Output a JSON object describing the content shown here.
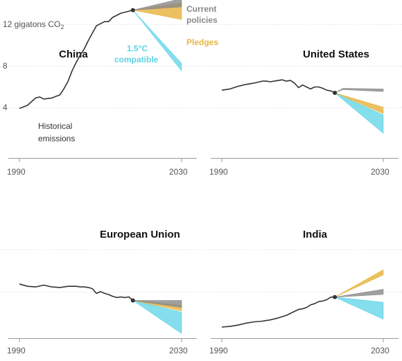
{
  "colors": {
    "historical": "#333333",
    "current_policies": "#888888",
    "pledges": "#e8b645",
    "compatible": "#5bd3e6",
    "grid": "#dddddd",
    "axis": "#999999"
  },
  "y_unit_label": "12 gigatons CO",
  "y_unit_subscript": "2",
  "y_ticks": [
    4,
    8
  ],
  "annotations": {
    "historical": [
      "Historical",
      "emissions"
    ],
    "current_policies": [
      "Current",
      "policies"
    ],
    "pledges": "Pledges",
    "compatible": [
      "1.5°C",
      "compatible"
    ]
  },
  "chart_data": [
    {
      "type": "line",
      "title": "China",
      "x_ticks": [
        "1990",
        "2030"
      ],
      "xlim": [
        1990,
        2030
      ],
      "ylim": [
        0,
        14
      ],
      "historical": {
        "x": [
          1990,
          1992,
          1994,
          1995,
          1996,
          1998,
          2000,
          2001,
          2002,
          2003,
          2004,
          2005,
          2006,
          2007,
          2008,
          2009,
          2010,
          2011,
          2012,
          2013,
          2014,
          2015,
          2016,
          2017,
          2018
        ],
        "y": [
          3.9,
          4.2,
          4.9,
          5.0,
          4.8,
          4.9,
          5.2,
          5.8,
          6.5,
          7.5,
          8.3,
          9.0,
          9.6,
          10.4,
          11.1,
          11.8,
          12.0,
          12.2,
          12.2,
          12.6,
          12.8,
          13.0,
          13.1,
          13.2,
          13.3
        ]
      },
      "current_policies": {
        "x": [
          2018,
          2030
        ],
        "low": [
          13.3,
          13.6
        ],
        "high": [
          13.3,
          14.4
        ]
      },
      "pledges": {
        "x": [
          2018,
          2030
        ],
        "low": [
          13.3,
          12.4
        ],
        "high": [
          13.3,
          14.0
        ]
      },
      "compatible": {
        "x": [
          2018,
          2030
        ],
        "low": [
          13.3,
          7.5
        ],
        "high": [
          13.3,
          8.2
        ]
      }
    },
    {
      "type": "line",
      "title": "United States",
      "x_ticks": [
        "1990",
        "2030"
      ],
      "xlim": [
        1990,
        2030
      ],
      "ylim": [
        0,
        8
      ],
      "historical": {
        "x": [
          1990,
          1992,
          1994,
          1996,
          1998,
          2000,
          2001,
          2002,
          2004,
          2005,
          2006,
          2007,
          2008,
          2009,
          2010,
          2011,
          2012,
          2013,
          2014,
          2015,
          2016,
          2017,
          2018
        ],
        "y": [
          5.2,
          5.3,
          5.5,
          5.65,
          5.75,
          5.9,
          5.9,
          5.85,
          5.95,
          6.0,
          5.9,
          5.95,
          5.75,
          5.4,
          5.6,
          5.45,
          5.3,
          5.45,
          5.45,
          5.35,
          5.2,
          5.15,
          5.0
        ]
      },
      "current_policies": {
        "x": [
          2018,
          2020,
          2030
        ],
        "low": [
          5.0,
          5.25,
          5.1
        ],
        "high": [
          5.0,
          5.35,
          5.3
        ]
      },
      "pledges": {
        "x": [
          2018,
          2030
        ],
        "low": [
          5.0,
          3.4
        ],
        "high": [
          5.0,
          3.9
        ]
      },
      "compatible": {
        "x": [
          2018,
          2030
        ],
        "low": [
          5.0,
          1.9
        ],
        "high": [
          5.0,
          3.3
        ]
      }
    },
    {
      "type": "line",
      "title": "European Union",
      "x_ticks": [
        "1990",
        "2030"
      ],
      "xlim": [
        1990,
        2030
      ],
      "ylim": [
        0,
        8
      ],
      "historical": {
        "x": [
          1990,
          1992,
          1994,
          1996,
          1998,
          2000,
          2002,
          2004,
          2005,
          2006,
          2007,
          2008,
          2009,
          2010,
          2011,
          2012,
          2013,
          2014,
          2015,
          2016,
          2017,
          2018
        ],
        "y": [
          4.6,
          4.4,
          4.35,
          4.5,
          4.35,
          4.3,
          4.4,
          4.4,
          4.35,
          4.35,
          4.3,
          4.2,
          3.8,
          3.95,
          3.8,
          3.7,
          3.55,
          3.45,
          3.5,
          3.45,
          3.5,
          3.2
        ]
      },
      "current_policies": {
        "x": [
          2018,
          2030
        ],
        "low": [
          3.2,
          2.6
        ],
        "high": [
          3.2,
          3.2
        ]
      },
      "pledges": {
        "x": [
          2018,
          2030
        ],
        "low": [
          3.2,
          2.3
        ],
        "high": [
          3.2,
          2.8
        ]
      },
      "compatible": {
        "x": [
          2018,
          2030
        ],
        "low": [
          3.2,
          0.4
        ],
        "high": [
          3.2,
          2.2
        ]
      }
    },
    {
      "type": "line",
      "title": "India",
      "x_ticks": [
        "1990",
        "2030"
      ],
      "xlim": [
        1990,
        2030
      ],
      "ylim": [
        0,
        8
      ],
      "historical": {
        "x": [
          1990,
          1992,
          1994,
          1996,
          1998,
          2000,
          2002,
          2004,
          2006,
          2008,
          2009,
          2010,
          2011,
          2012,
          2013,
          2014,
          2015,
          2016,
          2017,
          2018
        ],
        "y": [
          0.6,
          0.65,
          0.75,
          0.9,
          1.0,
          1.05,
          1.15,
          1.3,
          1.5,
          1.8,
          1.95,
          2.0,
          2.1,
          2.3,
          2.4,
          2.55,
          2.6,
          2.7,
          2.9,
          2.9
        ]
      },
      "current_policies": {
        "x": [
          2018,
          2030
        ],
        "low": [
          2.9,
          3.1
        ],
        "high": [
          2.9,
          3.5
        ]
      },
      "pledges": {
        "x": [
          2018,
          2030
        ],
        "low": [
          2.9,
          4.6
        ],
        "high": [
          2.9,
          5.0
        ]
      },
      "compatible": {
        "x": [
          2018,
          2030
        ],
        "low": [
          2.9,
          1.2
        ],
        "high": [
          2.9,
          2.5
        ]
      }
    }
  ]
}
